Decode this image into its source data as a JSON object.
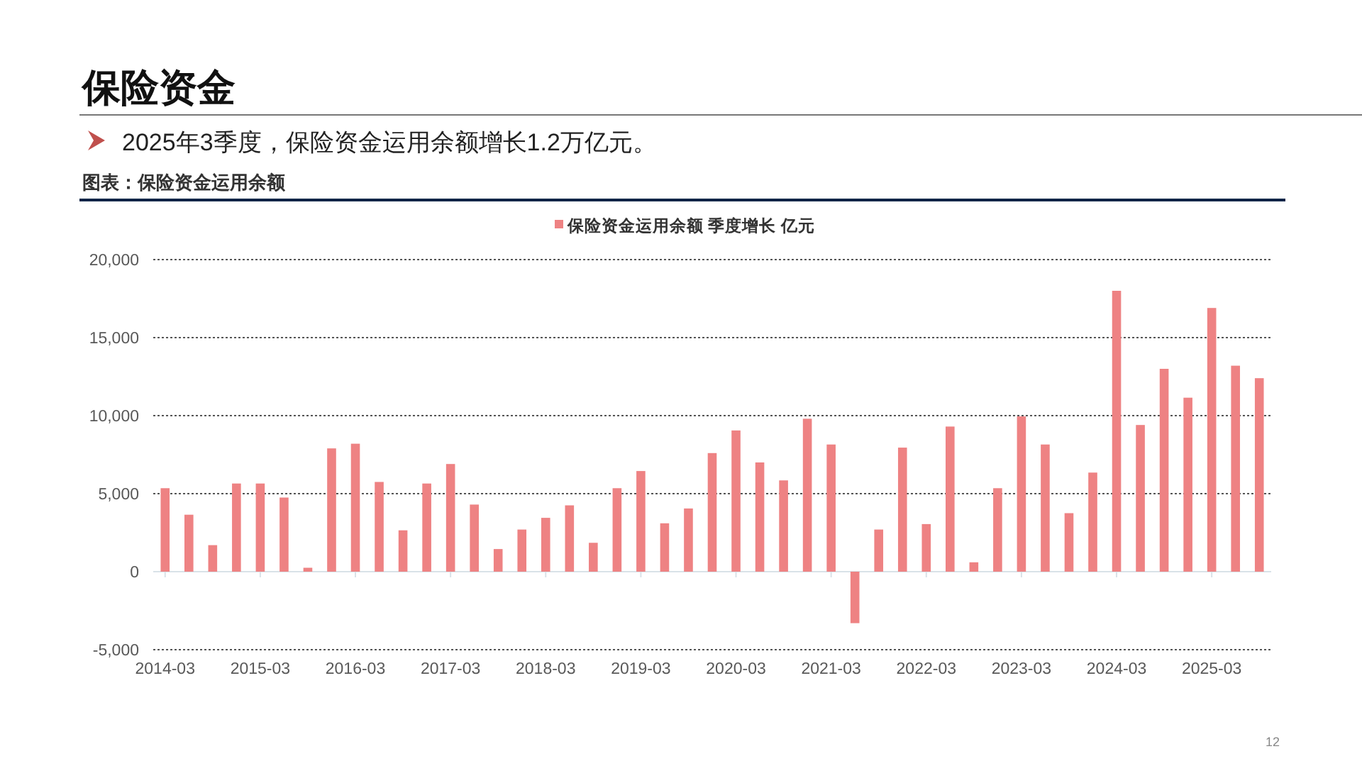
{
  "chart_data": {
    "type": "bar",
    "title": "保险资金",
    "subtitle": "2025年3季度，保险资金运用余额增长1.2万亿元。",
    "annotations": [
      "图表：保险资金运用余额",
      "12"
    ],
    "categories": [
      "2014-03",
      null,
      null,
      null,
      "2015-03",
      null,
      null,
      null,
      "2016-03",
      null,
      null,
      null,
      "2017-03",
      null,
      null,
      null,
      "2018-03",
      null,
      null,
      null,
      "2019-03",
      null,
      null,
      null,
      "2020-03",
      null,
      null,
      null,
      "2021-03",
      null,
      null,
      null,
      "2022-03",
      null,
      null,
      null,
      "2023-03",
      null,
      null,
      null,
      "2024-03",
      null,
      null,
      null,
      "2025-03",
      null,
      null
    ],
    "series": [
      {
        "name": "保险资金运用余额 季度增长 亿元",
        "color": "#ee8283",
        "values": [
          5350,
          3650,
          1700,
          5650,
          5650,
          4750,
          250,
          7900,
          8200,
          5750,
          2650,
          5650,
          6900,
          4300,
          1450,
          2700,
          3450,
          4250,
          1850,
          5350,
          6450,
          3100,
          4050,
          7600,
          9050,
          7000,
          5850,
          9800,
          8150,
          -3300,
          2700,
          7950,
          3050,
          9300,
          600,
          5350,
          9950,
          8150,
          3750,
          6350,
          18000,
          9400,
          13000,
          11150,
          16900,
          13200,
          12400
        ]
      }
    ],
    "ylim": [
      -5000,
      20000
    ],
    "yticks": [
      {
        "value": 20000,
        "label": "20,000"
      },
      {
        "value": 15000,
        "label": "15,000"
      },
      {
        "value": 10000,
        "label": "10,000"
      },
      {
        "value": 5000,
        "label": "5,000"
      },
      0,
      {
        "value": -5000,
        "label": "-5,000"
      }
    ],
    "grid": "y",
    "legend": "top"
  }
}
